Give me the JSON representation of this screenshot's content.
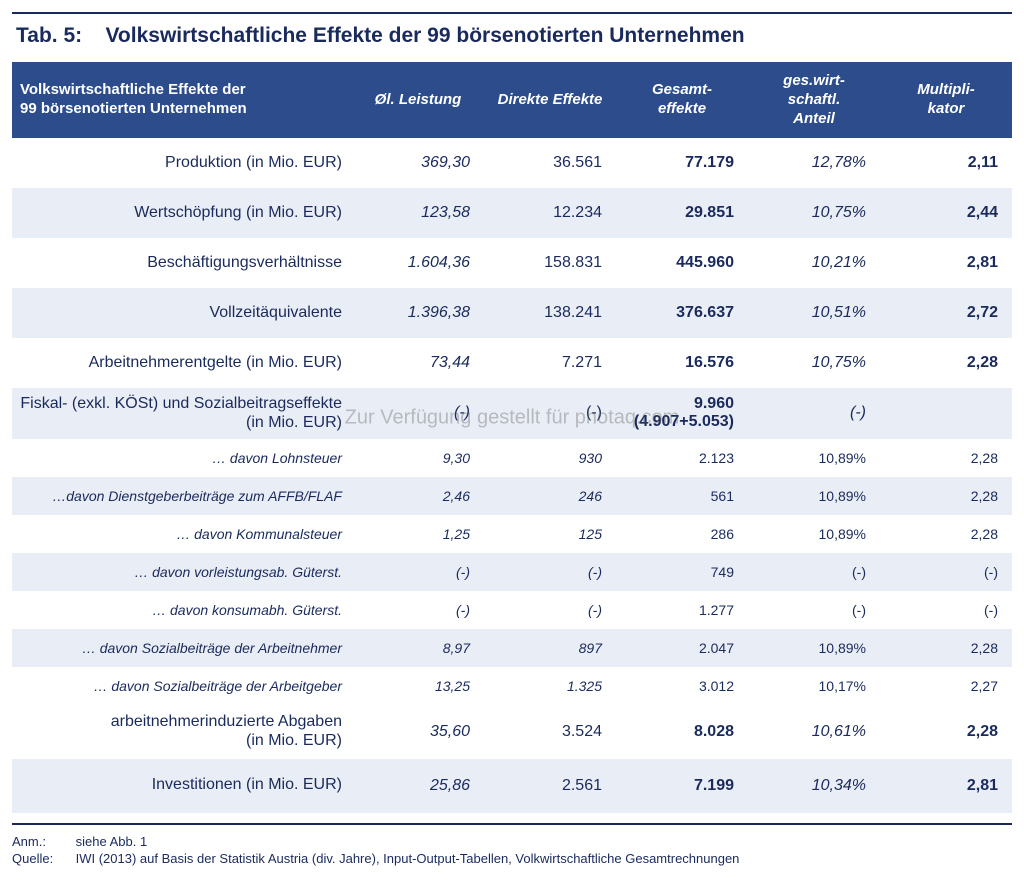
{
  "title_prefix": "Tab. 5:",
  "title_text": "Volkswirtschaftliche Effekte der 99 börsenotierten Unternehmen",
  "colors": {
    "header_bg": "#2c4c8c",
    "header_fg": "#ffffff",
    "text": "#1a2a5c",
    "band_bg": "#e9edf5",
    "rule": "#1a2a5c"
  },
  "header": {
    "label_line1": "Volkswirtschaftliche Effekte der",
    "label_line2": "99 börsenotierten Unternehmen",
    "col1": "Øl. Leistung",
    "col2": "Direkte Effekte",
    "col3_line1": "Gesamt-",
    "col3_line2": "effekte",
    "col4_line1": "ges.wirt-",
    "col4_line2": "schaftl.",
    "col4_line3": "Anteil",
    "col5_line1": "Multipli-",
    "col5_line2": "kator"
  },
  "rows_main": [
    {
      "label": "Produktion (in Mio. EUR)",
      "c1": "369,30",
      "c2": "36.561",
      "c3": "77.179",
      "c4": "12,78%",
      "c5": "2,11"
    },
    {
      "label": "Wertschöpfung (in Mio. EUR)",
      "c1": "123,58",
      "c2": "12.234",
      "c3": "29.851",
      "c4": "10,75%",
      "c5": "2,44"
    },
    {
      "label": "Beschäftigungsverhältnisse",
      "c1": "1.604,36",
      "c2": "158.831",
      "c3": "445.960",
      "c4": "10,21%",
      "c5": "2,81"
    },
    {
      "label": "Vollzeitäquivalente",
      "c1": "1.396,38",
      "c2": "138.241",
      "c3": "376.637",
      "c4": "10,51%",
      "c5": "2,72"
    },
    {
      "label": "Arbeitnehmerentgelte (in Mio. EUR)",
      "c1": "73,44",
      "c2": "7.271",
      "c3": "16.576",
      "c4": "10,75%",
      "c5": "2,28"
    }
  ],
  "fiscal": {
    "label_line1": "Fiskal- (exkl. KÖSt) und Sozialbeitragseffekte",
    "label_line2": "(in Mio. EUR)",
    "c1": "(-)",
    "c2": "(-)",
    "c3_line1": "9.960",
    "c3_line2": "(4.907+5.053)",
    "c4": "(-)",
    "c5": ""
  },
  "rows_sub": [
    {
      "label": "… davon Lohnsteuer",
      "c1": "9,30",
      "c2": "930",
      "c3": "2.123",
      "c4": "10,89%",
      "c5": "2,28"
    },
    {
      "label": "…davon Dienstgeberbeiträge zum AFFB/FLAF",
      "c1": "2,46",
      "c2": "246",
      "c3": "561",
      "c4": "10,89%",
      "c5": "2,28"
    },
    {
      "label": "… davon Kommunalsteuer",
      "c1": "1,25",
      "c2": "125",
      "c3": "286",
      "c4": "10,89%",
      "c5": "2,28"
    },
    {
      "label": "… davon vorleistungsab. Güterst.",
      "c1": "(-)",
      "c2": "(-)",
      "c3": "749",
      "c4": "(-)",
      "c5": "(-)"
    },
    {
      "label": "… davon konsumabh. Güterst.",
      "c1": "(-)",
      "c2": "(-)",
      "c3": "1.277",
      "c4": "(-)",
      "c5": "(-)"
    },
    {
      "label": "… davon Sozialbeiträge der Arbeitnehmer",
      "c1": "8,97",
      "c2": "897",
      "c3": "2.047",
      "c4": "10,89%",
      "c5": "2,28"
    },
    {
      "label": "… davon Sozialbeiträge der Arbeitgeber",
      "c1": "13,25",
      "c2": "1.325",
      "c3": "3.012",
      "c4": "10,17%",
      "c5": "2,27"
    }
  ],
  "summary": [
    {
      "label_line1": "arbeitnehmerinduzierte Abgaben",
      "label_line2": "(in Mio. EUR)",
      "c1": "35,60",
      "c2": "3.524",
      "c3": "8.028",
      "c4": "10,61%",
      "c5": "2,28"
    },
    {
      "label_line1": "Investitionen (in Mio. EUR)",
      "label_line2": "",
      "c1": "25,86",
      "c2": "2.561",
      "c3": "7.199",
      "c4": "10,34%",
      "c5": "2,81"
    }
  ],
  "footnotes": {
    "anm_label": "Anm.:",
    "anm_text": "siehe Abb. 1",
    "quelle_label": "Quelle:",
    "quelle_text": "IWI (2013) auf Basis der Statistik Austria (div. Jahre), Input-Output-Tabellen, Volkwirtschaftliche Gesamtrechnungen"
  },
  "watermark": "Zur Verfügung gestellt für photaq.com"
}
